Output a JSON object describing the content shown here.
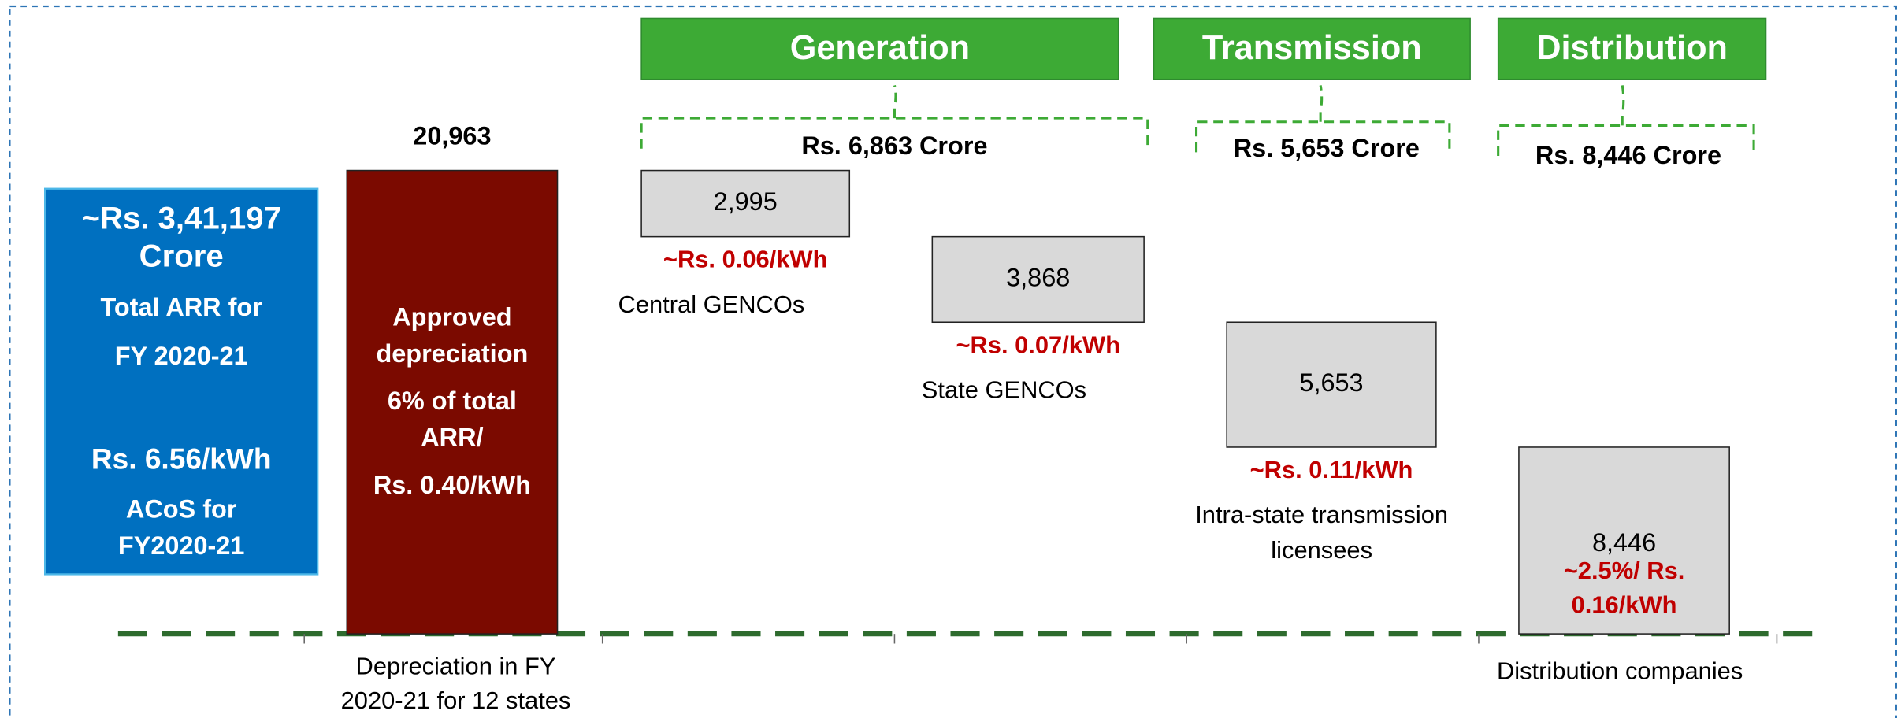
{
  "chart_data": {
    "type": "waterfall",
    "summary_lines": [
      "~Rs. 3,41,197",
      "Crore",
      "Total ARR for",
      "FY 2020-21",
      "Rs. 6.56/kWh",
      "ACoS for",
      "FY2020-21"
    ],
    "bar_text_lines": [
      "Approved",
      "depreciation",
      "6% of total",
      "ARR/",
      "Rs. 0.40/kWh"
    ],
    "categories": [
      [
        "Depreciation in FY",
        "2020-21 for 12 states"
      ],
      [
        "Central GENCOs"
      ],
      [
        "State GENCOs"
      ],
      [
        "Intra-state transmission",
        "licensees"
      ],
      [
        "Distribution companies"
      ]
    ],
    "values": [
      20963,
      2995,
      3868,
      5653,
      8446
    ],
    "value_labels": [
      "20,963",
      "2,995",
      "3,868",
      "5,653",
      "8,446"
    ],
    "rate_labels": [
      null,
      [
        "~Rs. 0.06/kWh"
      ],
      [
        "~Rs. 0.07/kWh"
      ],
      [
        "~Rs. 0.11/kWh"
      ],
      [
        "~2.5%/ Rs.",
        "0.16/kWh"
      ]
    ],
    "groups": [
      {
        "name": "Generation",
        "total_label": "Rs. 6,863 Crore"
      },
      {
        "name": "Transmission",
        "total_label": "Rs. 5,653 Crore"
      },
      {
        "name": "Distribution",
        "total_label": "Rs. 8,446 Crore"
      }
    ],
    "colors": {
      "summary": "#0070c0",
      "total": "#7b0a00",
      "segment": "#d9d9d9",
      "group": "#3daa35",
      "rate": "#c00000",
      "axis": "#2e6b2e"
    }
  }
}
